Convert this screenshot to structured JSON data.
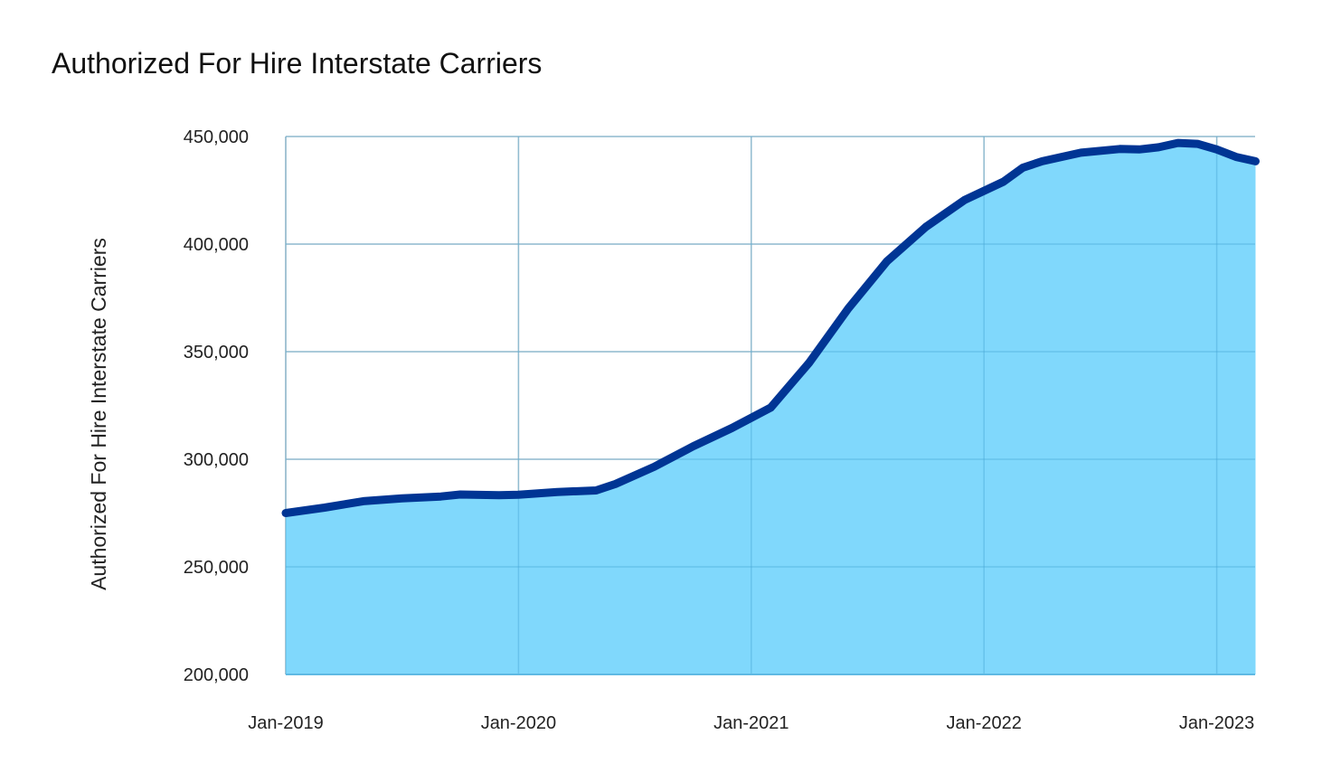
{
  "chart_data": {
    "type": "area",
    "title": "Authorized For Hire Interstate Carriers",
    "ylabel": "Authorized For Hire Interstate Carriers",
    "xlabel": "",
    "ylim": [
      200000,
      450000
    ],
    "yticks": [
      200000,
      250000,
      300000,
      350000,
      400000,
      450000
    ],
    "ytick_labels": [
      "200,000",
      "250,000",
      "300,000",
      "350,000",
      "400,000",
      "450,000"
    ],
    "xticks": [
      0,
      12,
      24,
      36,
      48
    ],
    "xtick_labels": [
      "Jan-2019",
      "Jan-2020",
      "Jan-2021",
      "Jan-2022",
      "Jan-2023"
    ],
    "xlim": [
      0,
      50
    ],
    "grid": true,
    "colors": {
      "line": "#003594",
      "fill": "#80D8FC",
      "grid": "#cccccc"
    },
    "series": [
      {
        "name": "Authorized For Hire Interstate Carriers",
        "x": [
          0,
          2,
          4,
          6,
          8,
          9,
          11,
          12,
          14,
          16,
          17,
          19,
          21,
          23,
          25,
          27,
          29,
          31,
          33,
          35,
          37,
          38,
          39,
          41,
          43,
          44,
          45,
          46,
          47,
          48,
          49,
          50
        ],
        "values": [
          275000,
          277500,
          280500,
          281800,
          282700,
          283600,
          283300,
          283500,
          284800,
          285500,
          288500,
          296500,
          306000,
          314500,
          324000,
          345000,
          370000,
          392000,
          408000,
          420500,
          429000,
          435500,
          438500,
          442500,
          444200,
          444000,
          445000,
          447000,
          446600,
          444000,
          440500,
          438500
        ]
      }
    ]
  }
}
